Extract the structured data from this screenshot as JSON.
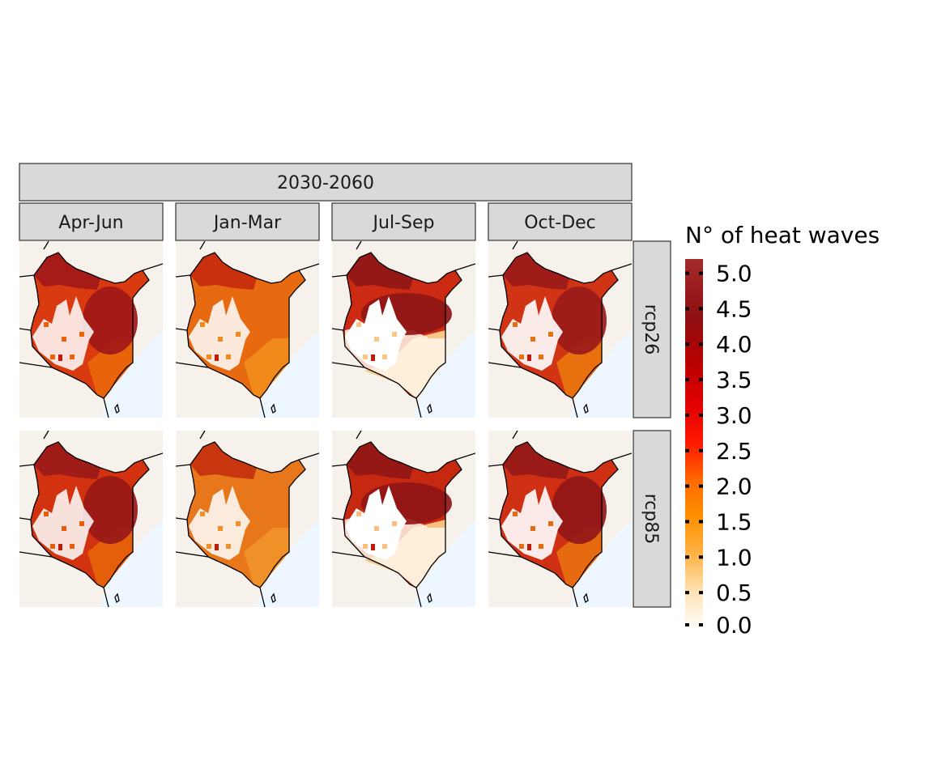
{
  "figure": {
    "period_label": "2030-2060",
    "columns": [
      "Apr-Jun",
      "Jan-Mar",
      "Jul-Sep",
      "Oct-Dec"
    ],
    "rows": [
      "rcp26",
      "rcp85"
    ]
  },
  "legend": {
    "title": "N° of heat waves",
    "ticks": [
      "5.0",
      "4.5",
      "4.0",
      "3.5",
      "3.0",
      "2.5",
      "2.0",
      "1.5",
      "1.0",
      "0.5",
      "0.0"
    ],
    "tick_values": [
      5.0,
      4.5,
      4.0,
      3.5,
      3.0,
      2.5,
      2.0,
      1.5,
      1.0,
      0.5,
      0.0
    ],
    "range": [
      0.0,
      5.2
    ],
    "colors": [
      "#fffef8",
      "#ffd9a0",
      "#ffb347",
      "#ff8c00",
      "#ff5a00",
      "#ff1a00",
      "#d90000",
      "#b30000",
      "#8b1a1a",
      "#a52a2a"
    ]
  },
  "colors": {
    "strip_bg": "#d9d9d9",
    "land_bg": "#f6f1ea",
    "sea": "#eef6ff",
    "border": "#000000"
  }
}
